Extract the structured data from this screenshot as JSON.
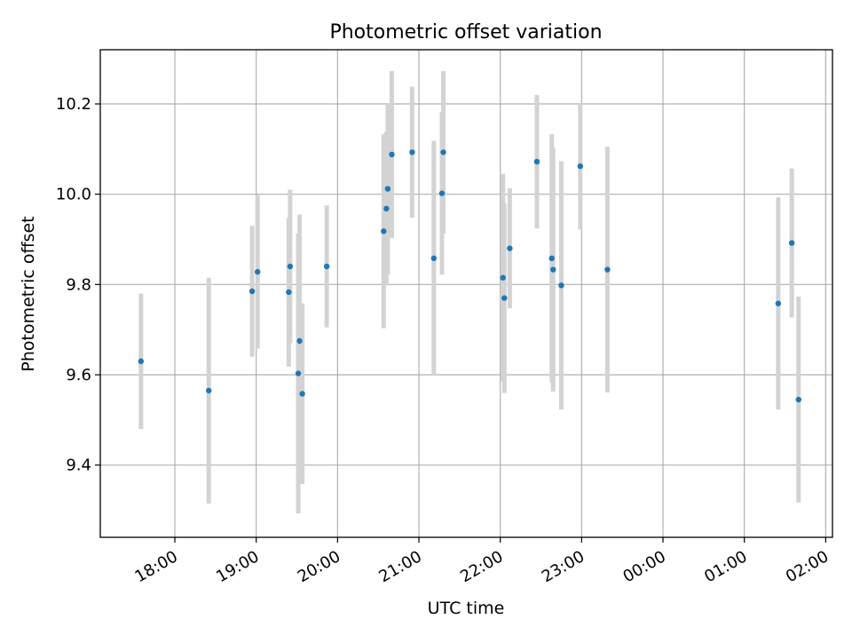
{
  "chart_data": {
    "type": "scatter",
    "title": "Photometric offset variation",
    "xlabel": "UTC time",
    "ylabel": "Photometric offset",
    "x_tick_labels": [
      "18:00",
      "19:00",
      "20:00",
      "21:00",
      "22:00",
      "23:00",
      "00:00",
      "01:00",
      "02:00"
    ],
    "y_tick_labels": [
      "9.4",
      "9.6",
      "9.8",
      "10.0",
      "10.2"
    ],
    "y_ticks": [
      9.4,
      9.6,
      9.8,
      10.0,
      10.2
    ],
    "ylim": [
      9.24,
      10.32
    ],
    "xlim": [
      "17:05",
      "02:05"
    ],
    "grid": true,
    "marker_color": "#1f77b4",
    "errorbar_color": "#d3d3d3",
    "points": [
      {
        "x": "17:35",
        "y": 9.63,
        "err": 0.15
      },
      {
        "x": "18:25",
        "y": 9.565,
        "err": 0.25
      },
      {
        "x": "18:57",
        "y": 9.785,
        "err": 0.145
      },
      {
        "x": "19:01",
        "y": 9.828,
        "err": 0.17
      },
      {
        "x": "19:24",
        "y": 9.783,
        "err": 0.165
      },
      {
        "x": "19:25",
        "y": 9.84,
        "err": 0.17
      },
      {
        "x": "19:31",
        "y": 9.603,
        "err": 0.31
      },
      {
        "x": "19:32",
        "y": 9.675,
        "err": 0.28
      },
      {
        "x": "19:34",
        "y": 9.558,
        "err": 0.2
      },
      {
        "x": "19:52",
        "y": 9.84,
        "err": 0.135
      },
      {
        "x": "20:34",
        "y": 9.918,
        "err": 0.215
      },
      {
        "x": "20:36",
        "y": 9.968,
        "err": 0.17
      },
      {
        "x": "20:37",
        "y": 10.012,
        "err": 0.19
      },
      {
        "x": "20:40",
        "y": 10.088,
        "err": 0.185
      },
      {
        "x": "20:55",
        "y": 10.093,
        "err": 0.145
      },
      {
        "x": "21:11",
        "y": 9.858,
        "err": 0.26
      },
      {
        "x": "21:17",
        "y": 10.002,
        "err": 0.18
      },
      {
        "x": "21:18",
        "y": 10.093,
        "err": 0.18
      },
      {
        "x": "22:02",
        "y": 9.815,
        "err": 0.23
      },
      {
        "x": "22:03",
        "y": 9.77,
        "err": 0.21
      },
      {
        "x": "22:07",
        "y": 9.88,
        "err": 0.133
      },
      {
        "x": "22:27",
        "y": 10.072,
        "err": 0.148
      },
      {
        "x": "22:38",
        "y": 9.858,
        "err": 0.275
      },
      {
        "x": "22:39",
        "y": 9.833,
        "err": 0.27
      },
      {
        "x": "22:45",
        "y": 9.798,
        "err": 0.275
      },
      {
        "x": "22:59",
        "y": 10.062,
        "err": 0.14
      },
      {
        "x": "23:19",
        "y": 9.833,
        "err": 0.272
      },
      {
        "x": "01:25",
        "y": 9.758,
        "err": 0.235
      },
      {
        "x": "01:35",
        "y": 9.892,
        "err": 0.165
      },
      {
        "x": "01:40",
        "y": 9.545,
        "err": 0.228
      }
    ]
  }
}
